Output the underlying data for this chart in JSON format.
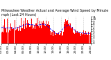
{
  "title": "Milwaukee Weather Actual and Average Wind Speed by Minute mph (Last 24 Hours)",
  "ylim": [
    0,
    11
  ],
  "num_points": 144,
  "background_color": "#ffffff",
  "bar_color": "#ff0000",
  "line_color": "#0000ff",
  "grid_color": "#808080",
  "grid_linestyle": ":",
  "title_fontsize": 3.5,
  "tick_fontsize": 3.0,
  "yticks": [
    0,
    1,
    2,
    3,
    4,
    5,
    6,
    7,
    8,
    9,
    10,
    11
  ],
  "num_gridlines": 5,
  "figsize": [
    1.6,
    0.87
  ],
  "dpi": 100
}
